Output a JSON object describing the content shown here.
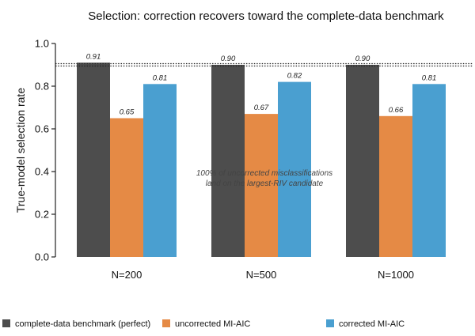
{
  "chart_data": {
    "type": "bar",
    "title": "Selection: correction recovers toward the complete-data benchmark",
    "ylabel": "True-model selection rate",
    "xlabel": "",
    "ylim": [
      0,
      1.0
    ],
    "yticks": [
      "0.0",
      "0.2",
      "0.4",
      "0.6",
      "0.8",
      "1.0"
    ],
    "categories": [
      "N=200",
      "N=500",
      "N=1000"
    ],
    "series": [
      {
        "name": "complete-data benchmark (perfect)",
        "color": "#4d4d4d",
        "values": [
          0.91,
          0.9,
          0.9
        ],
        "labels": [
          "0.91",
          "0.90",
          "0.90"
        ]
      },
      {
        "name": "uncorrected MI-AIC",
        "color": "#e58a45",
        "values": [
          0.65,
          0.67,
          0.66
        ],
        "labels": [
          "0.65",
          "0.67",
          "0.66"
        ]
      },
      {
        "name": "corrected MI-AIC",
        "color": "#4a9fd0",
        "values": [
          0.81,
          0.82,
          0.81
        ],
        "labels": [
          "0.81",
          "0.82",
          "0.81"
        ]
      }
    ],
    "reference_line": {
      "y": 0.9,
      "style": "dotted",
      "color": "#222222"
    },
    "annotation": {
      "lines": [
        "100% of uncorrected misclassifications",
        "land on the largest-RIV candidate"
      ],
      "x_category": "N=500",
      "y": 0.4
    },
    "grid": false,
    "legend_placement": "bottom"
  }
}
